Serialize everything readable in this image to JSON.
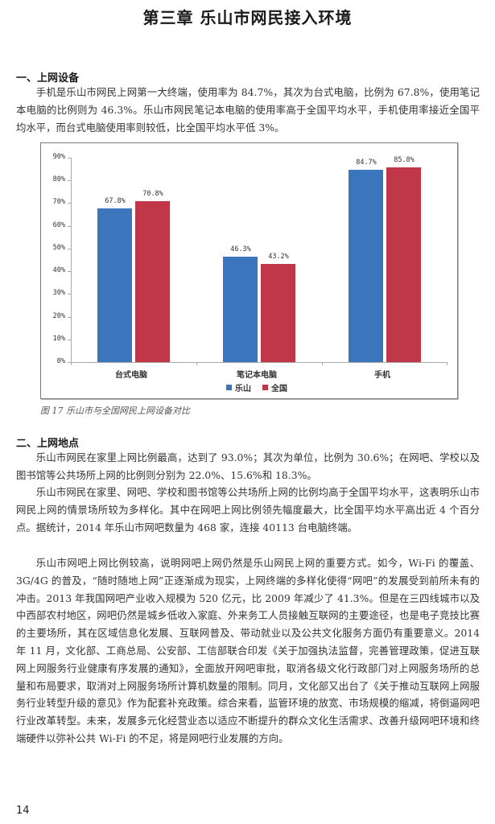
{
  "page": {
    "chapter_title": "第三章  乐山市网民接入环境",
    "page_number": "14"
  },
  "section1": {
    "heading": "一、上网设备",
    "paragraphs": [
      "手机是乐山市网民上网第一大终端，使用率为 84.7%，其次为台式电脑，比例为 67.8%，使用笔记本电脑的比例则为 46.3%。乐山市网民笔记本电脑的使用率高于全国平均水平，手机使用率接近全国平均水平，而台式电脑使用率则较低，比全国平均水平低 3%。"
    ]
  },
  "figure": {
    "caption": "图 17  乐山市与全国网民上网设备对比"
  },
  "chart_data": {
    "type": "bar",
    "title": "",
    "categories": [
      "台式电脑",
      "笔记本电脑",
      "手机"
    ],
    "series": [
      {
        "name": "乐山",
        "color": "#3b76bd",
        "values": [
          67.8,
          46.3,
          84.7
        ],
        "labels": [
          "67.8%",
          "46.3%",
          "84.7%"
        ]
      },
      {
        "name": "全国",
        "color": "#c0374a",
        "values": [
          70.8,
          43.2,
          85.8
        ],
        "labels": [
          "70.8%",
          "43.2%",
          "85.8%"
        ]
      }
    ],
    "yticks": [
      "0%",
      "10%",
      "20%",
      "30%",
      "40%",
      "50%",
      "60%",
      "70%",
      "80%",
      "90%"
    ],
    "ylim": [
      0,
      90
    ],
    "xlabel": "",
    "ylabel": "",
    "grid": false,
    "legend_position": "bottom",
    "caption": "图 17  乐山市与全国网民上网设备对比"
  },
  "section2": {
    "heading": "二、上网地点",
    "paragraphs": [
      "乐山市网民在家里上网比例最高，达到了 93.0%；其次为单位，比例为 30.6%；在网吧、学校以及图书馆等公共场所上网的比例则分别为 22.0%、15.6%和 18.3%。",
      "乐山市网民在家里、网吧、学校和图书馆等公共场所上网的比例均高于全国平均水平，这表明乐山市网民上网的情景场所较为多样化。其中在网吧上网比例领先幅度最大，比全国平均水平高出近 4 个百分点。据统计，2014 年乐山市网吧数量为 468 家，连接 40113 台电脑终端。",
      "乐山市网吧上网比例较高，说明网吧上网仍然是乐山网民上网的重要方式。如今，Wi-Fi 的覆盖、3G/4G 的普及，“随时随地上网”正逐渐成为现实，上网终端的多样化使得“网吧”的发展受到前所未有的冲击。2013 年我国网吧产业收入规模为 520 亿元，比 2009 年减少了 41.3%。但是在三四线城市以及中西部农村地区，网吧仍然是城乡低收入家庭、外来务工人员接触互联网的主要途径，也是电子竞技比赛的主要场所，其在区域信息化发展、互联网普及、带动就业以及公共文化服务方面仍有重要意义。2014 年 11 月，文化部、工商总局、公安部、工信部联合印发《关于加强执法监督，完善管理政策，促进互联网上网服务行业健康有序发展的通知》，全面放开网吧审批，取消各级文化行政部门对上网服务场所的总量和布局要求，取消对上网服务场所计算机数量的限制。同月，文化部又出台了《关于推动互联网上网服务行业转型升级的意见》作为配套补充政策。综合来看，监管环境的放宽、市场规模的缩减，将倒逼网吧行业改革转型。未来，发展多元化经营业态以适应不断提升的群众文化生活需求、改善升级网吧环境和终端硬件以弥补公共 Wi-Fi 的不足，将是网吧行业发展的方向。"
    ]
  }
}
